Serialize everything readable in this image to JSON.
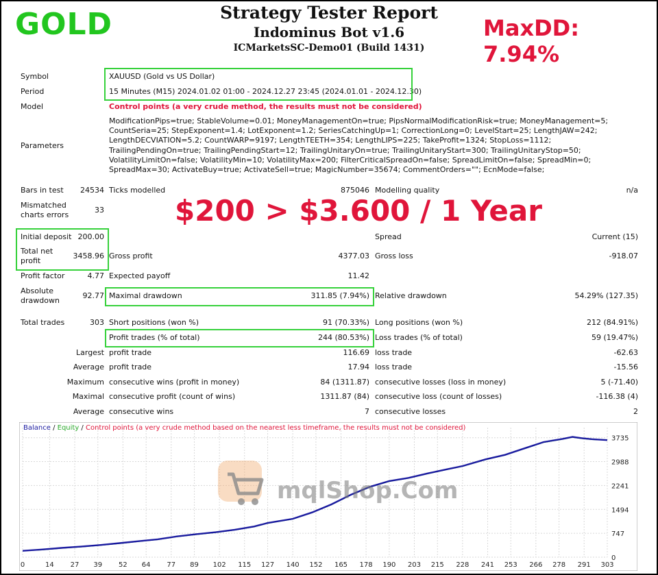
{
  "overlay": {
    "gold_label": "GOLD",
    "maxdd_label": "MaxDD: 7.94%",
    "promo": "$200 > $3.600 / 1 Year",
    "watermark": "mqlShop.Com"
  },
  "header": {
    "title": "Strategy Tester Report",
    "bot": "Indominus Bot v1.6",
    "account": "ICMarketsSC-Demo01 (Build 1431)"
  },
  "settings": {
    "symbol_label": "Symbol",
    "symbol": "XAUUSD (Gold vs US Dollar)",
    "period_label": "Period",
    "period": "15 Minutes (M15) 2024.01.02 01:00 - 2024.12.27 23:45 (2024.01.01 - 2024.12.30)",
    "model_label": "Model",
    "model": "Control points (a very crude method, the results must not be considered)",
    "parameters_label": "Parameters",
    "parameters": "ModificationPips=true; StableVolume=0.01; MoneyManagementOn=true; PipsNormalModificationRisk=true; MoneyManagement=5; CountSeria=25; StepExponent=1.4; LotExponent=1.2; SeriesCatchingUp=1; CorrectionLong=0; LevelStart=25; LengthJAW=242; LengthDECVIATION=5.2; CountWARP=9197; LengthTEETH=354; LengthLIPS=225; TakeProfit=1324; StopLoss=1112; TrailingPendingOn=true; TrailingPendingStart=12; TrailingUnitaryOn=true; TrailingUnitaryStart=300; TrailingUnitaryStop=50; VolatilityLimitOn=false; VolatilityMin=10; VolatilityMax=200; FilterCriticalSpreadOn=false; SpreadLimitOn=false; SpreadMin=0; SpreadMax=30; ActivateBuy=true; ActivateSell=true; MagicNumber=35674; CommentOrders=\"\"; EcnMode=false;"
  },
  "stats": {
    "bars_label": "Bars in test",
    "bars": "24534",
    "ticks_label": "Ticks modelled",
    "ticks": "875046",
    "quality_label": "Modelling quality",
    "quality": "n/a",
    "mismatch_label": "Mismatched charts errors",
    "mismatch": "33",
    "deposit_label": "Initial deposit",
    "deposit": "200.00",
    "spread_label": "Spread",
    "spread": "Current (15)",
    "netprofit_label": "Total net profit",
    "netprofit": "3458.96",
    "grossprofit_label": "Gross profit",
    "grossprofit": "4377.03",
    "grossloss_label": "Gross loss",
    "grossloss": "-918.07",
    "pf_label": "Profit factor",
    "pf": "4.77",
    "payoff_label": "Expected payoff",
    "payoff": "11.42",
    "absdd_label": "Absolute drawdown",
    "absdd": "92.77",
    "maxdd_label": "Maximal drawdown",
    "maxdd": "311.85 (7.94%)",
    "reldd_label": "Relative drawdown",
    "reldd": "54.29% (127.35)",
    "trades_label": "Total trades",
    "trades": "303",
    "short_label": "Short positions (won %)",
    "short": "91 (70.33%)",
    "long_label": "Long positions (won %)",
    "long": "212 (84.91%)",
    "ptrades_label": "Profit trades (% of total)",
    "ptrades": "244 (80.53%)",
    "ltrades_label": "Loss trades (% of total)",
    "ltrades": "59 (19.47%)",
    "largest_label": "Largest",
    "largest_pt_label": "profit trade",
    "largest_pt": "116.69",
    "largest_lt_label": "loss trade",
    "largest_lt": "-62.63",
    "average_label": "Average",
    "average_pt_label": "profit trade",
    "average_pt": "17.94",
    "average_lt_label": "loss trade",
    "average_lt": "-15.56",
    "maximum_label": "Maximum",
    "max_cw_label": "consecutive wins (profit in money)",
    "max_cw": "84 (1311.87)",
    "max_cl_label": "consecutive losses (loss in money)",
    "max_cl": "5 (-71.40)",
    "maximal_label": "Maximal",
    "mxl_cp_label": "consecutive profit (count of wins)",
    "mxl_cp": "1311.87 (84)",
    "mxl_cl_label": "consecutive loss (count of losses)",
    "mxl_cl": "-116.38 (4)",
    "average2_label": "Average",
    "avg_cw_label": "consecutive wins",
    "avg_cw": "7",
    "avg_cl_label": "consecutive losses",
    "avg_cl": "2"
  },
  "legend": {
    "balance": "Balance",
    "sep1": " / ",
    "equity": "Equity",
    "sep2": " / ",
    "control": "Control points (a very crude method based on the nearest less timeframe, the results must not be considered)"
  },
  "chart_data": {
    "type": "line",
    "x_ticks": [
      0,
      14,
      27,
      39,
      52,
      64,
      77,
      89,
      102,
      115,
      127,
      140,
      152,
      165,
      178,
      190,
      203,
      215,
      228,
      241,
      253,
      266,
      278,
      291,
      303
    ],
    "y_ticks": [
      0,
      747,
      1494,
      2241,
      2988,
      3735
    ],
    "xlim": [
      0,
      303
    ],
    "ylim": [
      0,
      4050
    ],
    "series": [
      {
        "name": "Balance",
        "color": "#1a1aa0",
        "x": [
          0,
          10,
          20,
          30,
          40,
          52,
          60,
          70,
          80,
          90,
          100,
          110,
          120,
          127,
          140,
          150,
          160,
          170,
          180,
          190,
          200,
          210,
          220,
          228,
          240,
          250,
          260,
          270,
          280,
          285,
          290,
          295,
          303
        ],
        "y": [
          200,
          240,
          290,
          330,
          380,
          450,
          500,
          560,
          650,
          720,
          780,
          860,
          960,
          1070,
          1200,
          1400,
          1650,
          1950,
          2200,
          2380,
          2480,
          2620,
          2750,
          2850,
          3060,
          3200,
          3400,
          3600,
          3700,
          3760,
          3720,
          3690,
          3659
        ]
      },
      {
        "name": "Equity",
        "color": "#2aa92a",
        "x": [
          0,
          10,
          20,
          30,
          40,
          52,
          60,
          70,
          80,
          90,
          100,
          110,
          120,
          127,
          140,
          150,
          160,
          170,
          180,
          190,
          200,
          210,
          220,
          228,
          240,
          250,
          260,
          270,
          280,
          285,
          290,
          295,
          303
        ],
        "y": [
          200,
          230,
          280,
          320,
          370,
          440,
          490,
          550,
          640,
          710,
          770,
          850,
          950,
          1060,
          1190,
          1390,
          1640,
          1940,
          2190,
          2370,
          2470,
          2610,
          2740,
          2840,
          3050,
          3190,
          3390,
          3590,
          3690,
          3750,
          3710,
          3680,
          3659
        ]
      }
    ]
  }
}
